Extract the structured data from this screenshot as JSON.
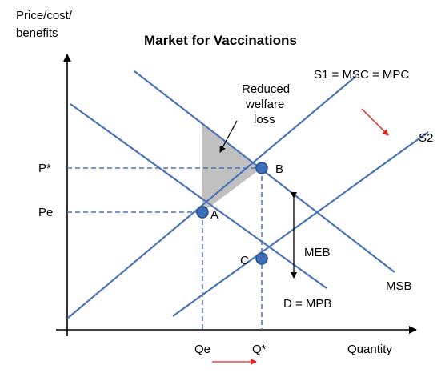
{
  "title": "Market for Vaccinations",
  "axes": {
    "y_label_line1": "Price/cost/",
    "y_label_line2": "benefits",
    "x_label": "Quantity"
  },
  "curves": {
    "s1": "S1 = MSC = MPC",
    "s2": "S2",
    "msb": "MSB",
    "d": "D = MPB"
  },
  "points": {
    "a": "A",
    "b": "B",
    "c": "C"
  },
  "price_labels": {
    "p_star": "P*",
    "pe": "Pe"
  },
  "quantity_labels": {
    "qe": "Qe",
    "q_star": "Q*"
  },
  "annotations": {
    "welfare_line1": "Reduced",
    "welfare_line2": "welfare",
    "welfare_line3": "loss",
    "meb": "MEB"
  },
  "colors": {
    "curve": "#4a74b8",
    "welfare_fill": "#c0c0c0",
    "shift_arrow": "#e02020"
  }
}
